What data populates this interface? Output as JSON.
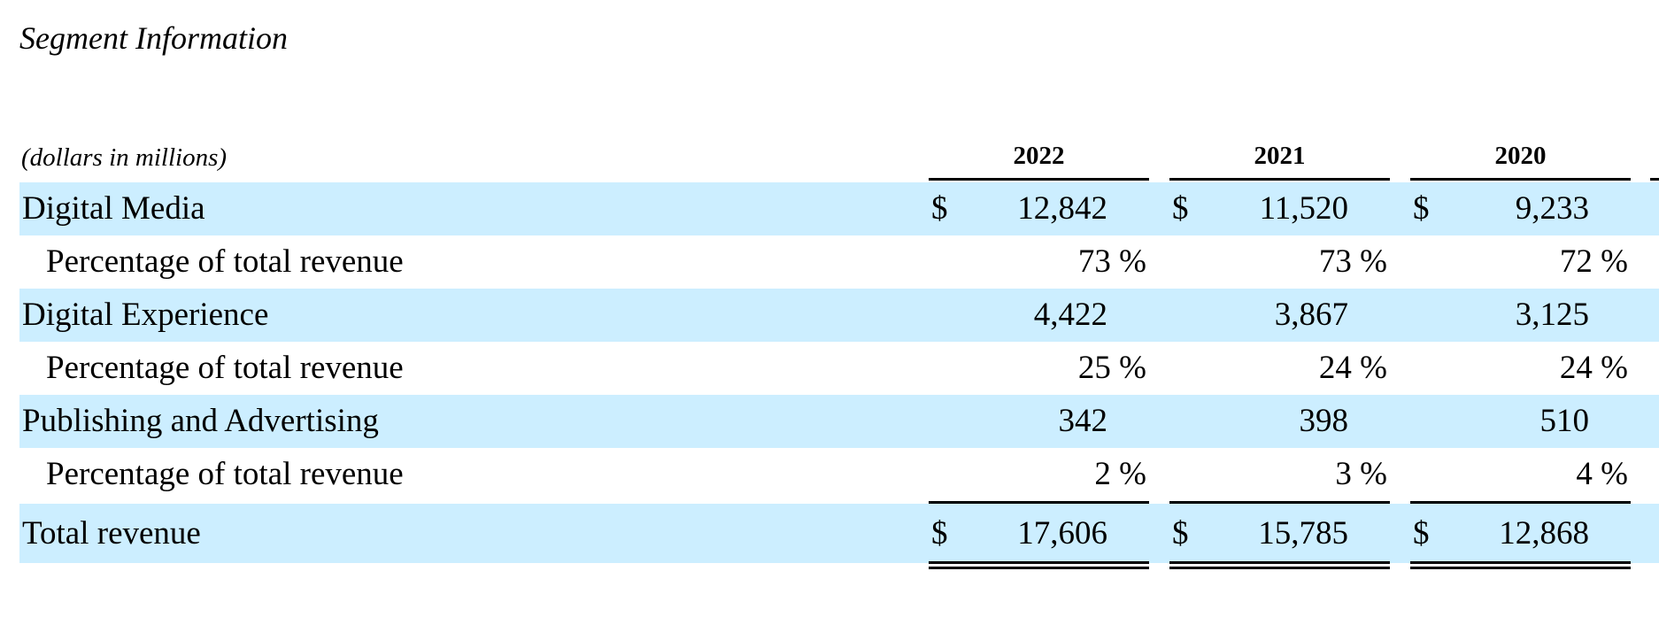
{
  "title": "Segment Information",
  "unit_note": "(dollars in millions)",
  "columns": [
    "2022",
    "2021",
    "2020"
  ],
  "rows": [
    {
      "label": "Digital Media",
      "currency": "$",
      "cells": [
        "12,842",
        "11,520",
        "9,233"
      ]
    },
    {
      "label": "Percentage of total revenue",
      "cells": [
        "73 %",
        "73 %",
        "72 %"
      ]
    },
    {
      "label": "Digital Experience",
      "cells": [
        "4,422",
        "3,867",
        "3,125"
      ]
    },
    {
      "label": "Percentage of total revenue",
      "cells": [
        "25 %",
        "24 %",
        "24 %"
      ]
    },
    {
      "label": "Publishing and Advertising",
      "cells": [
        "342",
        "398",
        "510"
      ]
    },
    {
      "label": "Percentage of total revenue",
      "cells": [
        "2 %",
        "3 %",
        "4 %"
      ]
    },
    {
      "label": "Total revenue",
      "currency": "$",
      "cells": [
        "17,606",
        "15,785",
        "12,868"
      ]
    }
  ]
}
